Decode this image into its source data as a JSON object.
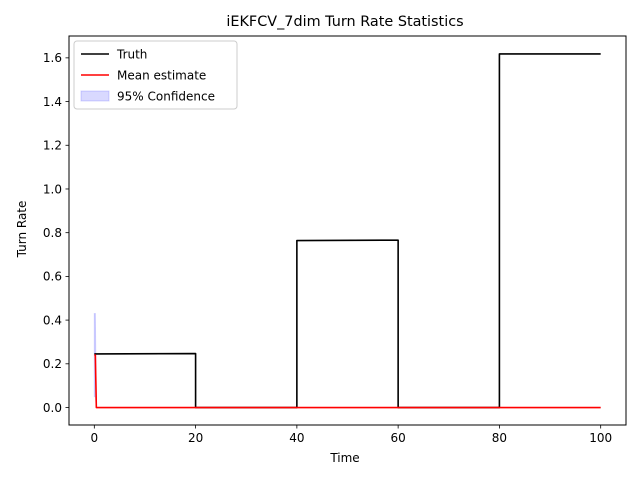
{
  "chart_data": {
    "type": "line",
    "title": "iEKFCV_7dim Turn Rate Statistics",
    "xlabel": "Time",
    "ylabel": "Turn Rate",
    "xlim": [
      -5,
      105
    ],
    "ylim": [
      -0.08,
      1.7
    ],
    "xticks": [
      0,
      20,
      40,
      60,
      80,
      100
    ],
    "yticks": [
      0.0,
      0.2,
      0.4,
      0.6,
      0.8,
      1.0,
      1.2,
      1.4,
      1.6
    ],
    "grid": false,
    "legend_position": "top-left",
    "series": [
      {
        "name": "Truth",
        "color": "#000000",
        "x": [
          0,
          20,
          20,
          40,
          40,
          60,
          60,
          80,
          80,
          100
        ],
        "y": [
          0.245,
          0.247,
          0,
          0,
          0.764,
          0.766,
          0,
          0,
          1.618,
          1.618
        ]
      },
      {
        "name": "Mean estimate",
        "color": "#ff0000",
        "x": [
          0,
          0.2,
          0.4,
          100
        ],
        "y": [
          0.24,
          0.24,
          0,
          0
        ]
      }
    ],
    "confidence_band": {
      "name": "95% Confidence",
      "color": "#0000ff",
      "x": [
        0,
        0.2,
        0.4,
        100
      ],
      "lower": [
        0.05,
        0.05,
        0,
        0
      ],
      "upper": [
        0.43,
        0.43,
        0,
        0
      ]
    }
  }
}
